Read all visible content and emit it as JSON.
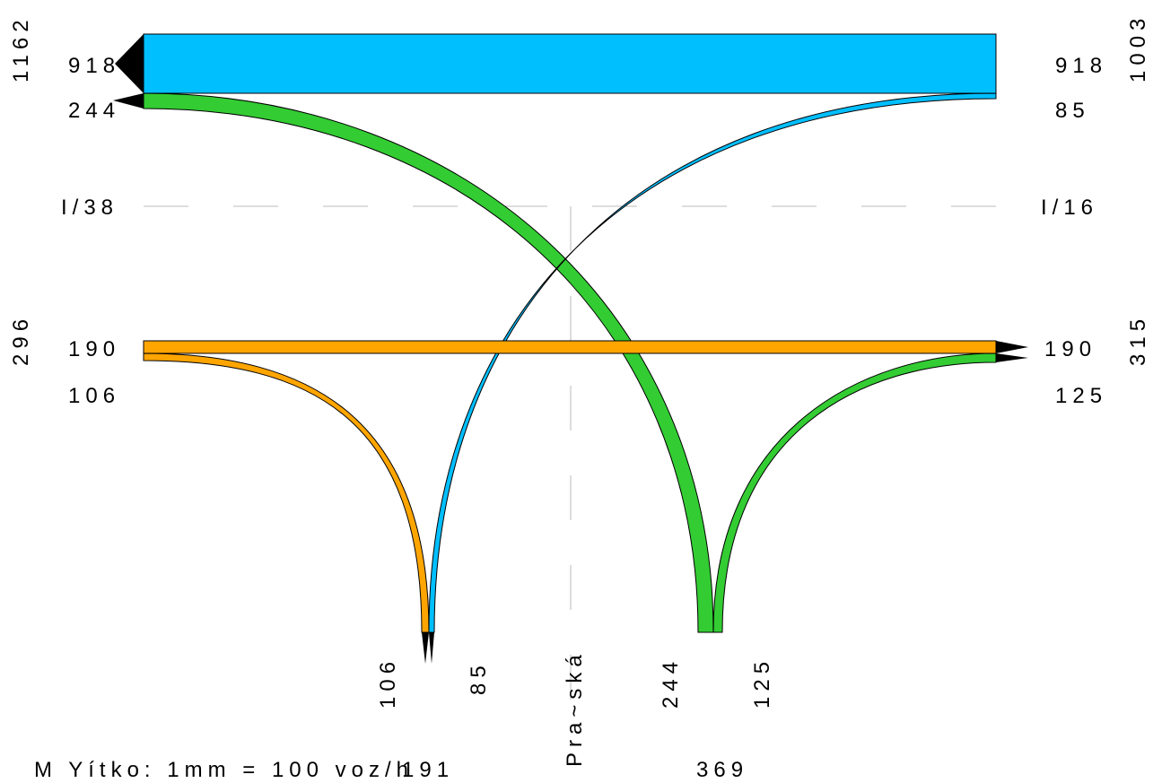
{
  "colors": {
    "blue": "#00bfff",
    "green": "#33cc33",
    "orange": "#ffa500",
    "guide": "#bbbbbb",
    "arrow": "#000000"
  },
  "roads": {
    "west": "I/38",
    "east": "I/16",
    "south": "Pra~ská"
  },
  "totals": {
    "west_top": "1162",
    "east_top": "1003",
    "west_bottom": "296",
    "east_bottom": "315",
    "south_left": "191",
    "south_right": "369"
  },
  "flows": {
    "west_through": "918",
    "east_through": "918",
    "west_to_south": "244",
    "east_to_south": "85",
    "west_lower_through": "190",
    "east_lower_through": "190",
    "west_lower_to_south": "106",
    "east_lower_from_south": "125",
    "south_orange": "106",
    "south_blue": "85",
    "south_green": "244",
    "south_green_small": "125"
  },
  "legend": {
    "scale": "M Yítko: 1mm = 100 voz/h"
  }
}
